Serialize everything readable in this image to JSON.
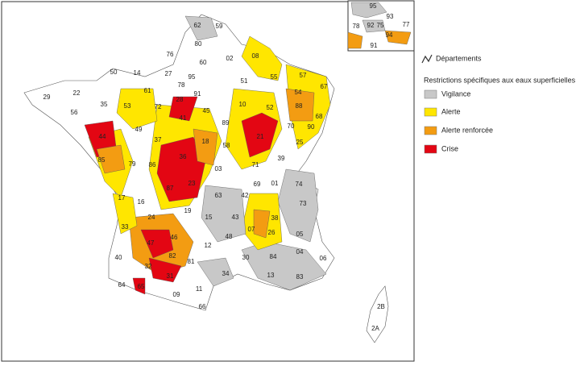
{
  "legend": {
    "departements": "Départements",
    "title": "Restrictions spécifiques aux eaux superficielles",
    "items": [
      {
        "label": "Vigilance",
        "color": "#c8c8c8"
      },
      {
        "label": "Alerte",
        "color": "#ffe600"
      },
      {
        "label": "Alerte renforcée",
        "color": "#f39c12"
      },
      {
        "label": "Crise",
        "color": "#e30613"
      }
    ]
  },
  "departments": [
    "62",
    "59",
    "80",
    "76",
    "02",
    "08",
    "60",
    "50",
    "14",
    "27",
    "95",
    "51",
    "55",
    "57",
    "67",
    "29",
    "22",
    "35",
    "61",
    "78",
    "91",
    "54",
    "88",
    "68",
    "53",
    "72",
    "28",
    "45",
    "10",
    "52",
    "56",
    "44",
    "49",
    "37",
    "41",
    "89",
    "21",
    "70",
    "90",
    "85",
    "79",
    "86",
    "36",
    "18",
    "58",
    "71",
    "39",
    "25",
    "17",
    "16",
    "87",
    "23",
    "03",
    "01",
    "74",
    "19",
    "63",
    "42",
    "69",
    "38",
    "73",
    "24",
    "15",
    "43",
    "33",
    "46",
    "12",
    "48",
    "07",
    "26",
    "05",
    "47",
    "82",
    "30",
    "84",
    "04",
    "06",
    "40",
    "32",
    "81",
    "34",
    "13",
    "83",
    "64",
    "65",
    "31",
    "11",
    "09",
    "66",
    "2B",
    "2A"
  ],
  "inset_departments": [
    "95",
    "93",
    "92",
    "75",
    "78",
    "94",
    "77",
    "91"
  ]
}
